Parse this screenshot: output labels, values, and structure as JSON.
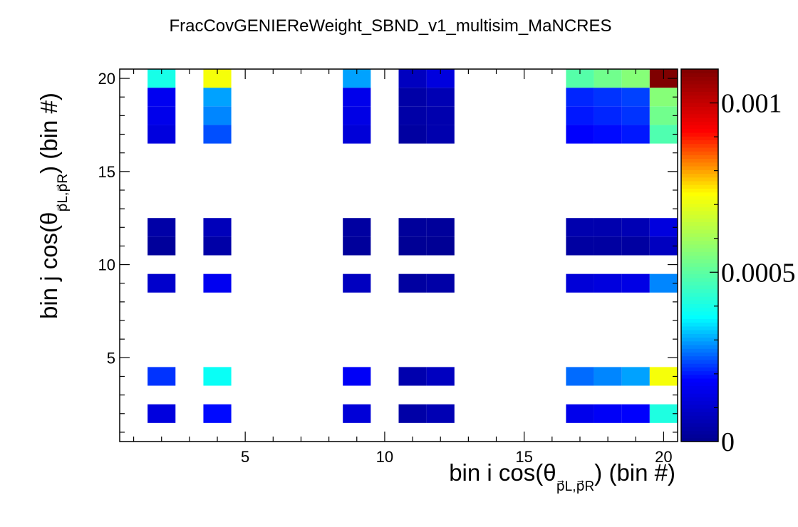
{
  "chart_data": {
    "type": "heatmap",
    "title": "FracCovGENIEReWeight_SBND_v1_multisim_MaNCRES",
    "xlabel": {
      "main": "bin i cos(θ",
      "sub": "p⃗L,p⃗R",
      "suffix": ") (bin #)"
    },
    "ylabel": {
      "main": "bin j cos(θ",
      "sub": "p⃗L,p⃗R",
      "suffix": ") (bin #)"
    },
    "xlim": [
      0.5,
      20.5
    ],
    "ylim": [
      0.5,
      20.5
    ],
    "x_ticks": [
      5,
      10,
      15,
      20
    ],
    "y_ticks": [
      5,
      10,
      15,
      20
    ],
    "z_range": [
      0,
      0.0011
    ],
    "z_ticks": [
      {
        "value": 0,
        "label": "0"
      },
      {
        "value": 0.0005,
        "label": "0.0005"
      },
      {
        "value": 0.001,
        "label": "0.001"
      }
    ],
    "colormap": [
      "#00008f",
      "#0000ff",
      "#00ffff",
      "#7fff7f",
      "#ffff00",
      "#ff0000",
      "#7f0000"
    ],
    "bins_x": [
      2,
      4,
      9,
      11,
      12,
      17,
      18,
      19,
      20
    ],
    "bins_y": [
      2,
      4,
      9,
      11,
      12,
      17,
      18,
      19,
      20
    ],
    "z": [
      [
        0.00013,
        0.00019,
        0.00012,
        4e-05,
        6e-05,
        0.00015,
        0.00017,
        0.00018,
        0.00041
      ],
      [
        0.00022,
        0.00038,
        0.00017,
        5e-05,
        8e-05,
        0.00026,
        0.00028,
        0.0003,
        0.00072
      ],
      [
        0.0001,
        0.00016,
        8e-05,
        3e-05,
        4e-05,
        0.00012,
        0.00013,
        0.00014,
        0.00028
      ],
      [
        2e-05,
        4e-05,
        2e-05,
        1e-05,
        1e-05,
        3e-05,
        3e-05,
        3e-05,
        8e-05
      ],
      [
        4e-05,
        7e-05,
        3e-05,
        2e-05,
        2e-05,
        5e-05,
        5e-05,
        6e-05,
        0.00013
      ],
      [
        0.00013,
        0.00024,
        0.00012,
        3e-05,
        5e-05,
        0.00018,
        0.00019,
        0.0002,
        0.00048
      ],
      [
        0.00015,
        0.00028,
        0.00014,
        4e-05,
        5e-05,
        0.0002,
        0.00021,
        0.00022,
        0.00053
      ],
      [
        0.00016,
        0.0003,
        0.00015,
        4e-05,
        6e-05,
        0.00021,
        0.00022,
        0.00023,
        0.00056
      ],
      [
        0.0004,
        0.00072,
        0.0003,
        8e-05,
        0.00013,
        0.00049,
        0.00053,
        0.00056,
        0.0011
      ]
    ]
  }
}
